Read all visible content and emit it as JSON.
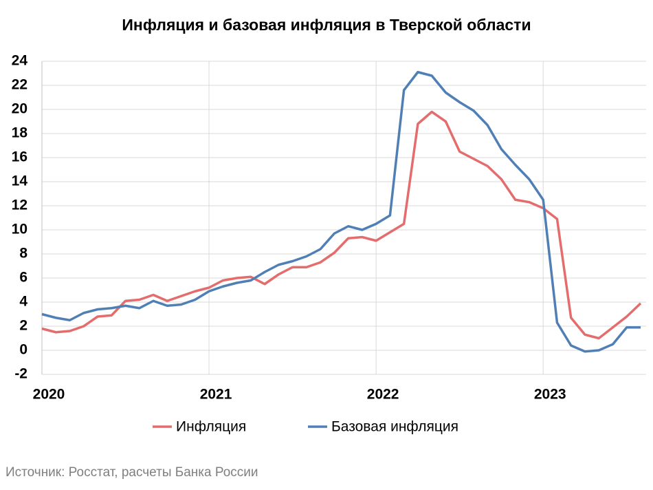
{
  "chart_data": {
    "type": "line",
    "title": "Инфляция и базовая инфляция в Тверской области",
    "source": "Источник: Росстат, расчеты Банка России",
    "categories": [
      "2020",
      null,
      null,
      null,
      null,
      null,
      null,
      null,
      null,
      null,
      null,
      null,
      "2021",
      null,
      null,
      null,
      null,
      null,
      null,
      null,
      null,
      null,
      null,
      null,
      "2022",
      null,
      null,
      null,
      null,
      null,
      null,
      null,
      null,
      null,
      null,
      null,
      "2023",
      null,
      null,
      null,
      null,
      null,
      null,
      null
    ],
    "series": [
      {
        "name": "Инфляция",
        "color": "#e46c6c",
        "values": [
          1.8,
          1.5,
          1.6,
          2.0,
          2.8,
          2.9,
          4.1,
          4.2,
          4.6,
          4.1,
          4.5,
          4.9,
          5.2,
          5.8,
          6.0,
          6.1,
          5.5,
          6.3,
          6.9,
          6.9,
          7.3,
          8.1,
          9.3,
          9.4,
          9.1,
          9.8,
          10.5,
          18.8,
          19.8,
          19.0,
          16.5,
          15.9,
          15.3,
          14.2,
          12.5,
          12.3,
          11.8,
          10.9,
          2.7,
          1.3,
          1.0,
          1.9,
          2.8,
          3.9
        ]
      },
      {
        "name": "Базовая инфляция",
        "color": "#4f7fb5",
        "values": [
          3.0,
          2.7,
          2.5,
          3.1,
          3.4,
          3.5,
          3.7,
          3.5,
          4.1,
          3.7,
          3.8,
          4.2,
          4.9,
          5.3,
          5.6,
          5.8,
          6.5,
          7.1,
          7.4,
          7.8,
          8.4,
          9.7,
          10.3,
          10.0,
          10.5,
          11.2,
          21.6,
          23.1,
          22.8,
          21.4,
          20.6,
          19.9,
          18.7,
          16.7,
          15.4,
          14.2,
          12.5,
          2.3,
          0.4,
          -0.1,
          0.0,
          0.5,
          1.9,
          1.9
        ]
      }
    ],
    "ylim": [
      -2,
      24
    ],
    "yticks": [
      -2,
      0,
      2,
      4,
      6,
      8,
      10,
      12,
      14,
      16,
      18,
      20,
      22,
      24
    ],
    "grid": true
  }
}
